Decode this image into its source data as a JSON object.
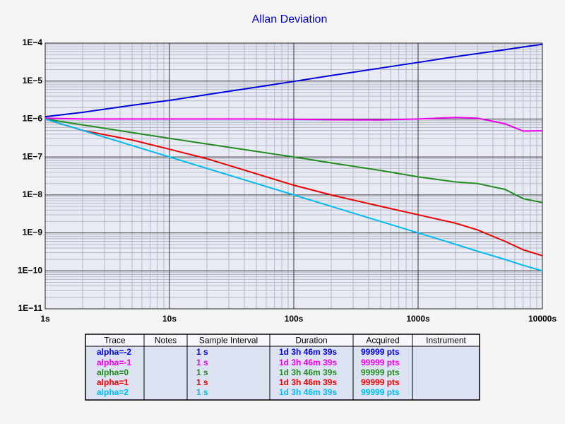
{
  "chart_data": {
    "type": "line",
    "title": "Allan Deviation",
    "log_x": true,
    "log_y": true,
    "grid": true,
    "minor_grid": true,
    "xlim": [
      1,
      10000
    ],
    "ylim": [
      1e-11,
      0.0001
    ],
    "xticks": [
      {
        "value": 1,
        "label": "1s"
      },
      {
        "value": 10,
        "label": "10s"
      },
      {
        "value": 100,
        "label": "100s"
      },
      {
        "value": 1000,
        "label": "1000s"
      },
      {
        "value": 10000,
        "label": "10000s"
      }
    ],
    "yticks": [
      {
        "value": 1e-11,
        "label": "1E−11"
      },
      {
        "value": 1e-10,
        "label": "1E−10"
      },
      {
        "value": 1e-09,
        "label": "1E−9"
      },
      {
        "value": 1e-08,
        "label": "1E−8"
      },
      {
        "value": 1e-07,
        "label": "1E−7"
      },
      {
        "value": 1e-06,
        "label": "1E−6"
      },
      {
        "value": 1e-05,
        "label": "1E−5"
      },
      {
        "value": 0.0001,
        "label": "1E−4"
      }
    ],
    "x": [
      1,
      2,
      5,
      10,
      20,
      50,
      100,
      200,
      500,
      1000,
      2000,
      3000,
      5000,
      7000,
      10000
    ],
    "series": [
      {
        "name": "alpha=-2",
        "color": "#0000dd",
        "values": [
          1.15e-06,
          1.5e-06,
          2.3e-06,
          3.1e-06,
          4.4e-06,
          6.9e-06,
          9.8e-06,
          1.4e-05,
          2.2e-05,
          3.1e-05,
          4.4e-05,
          5.3e-05,
          6.7e-05,
          7.9e-05,
          9.3e-05
        ]
      },
      {
        "name": "alpha=-1",
        "color": "#ee00ee",
        "values": [
          1.05e-06,
          1e-06,
          1e-06,
          1e-06,
          1e-06,
          1e-06,
          9.8e-07,
          9.6e-07,
          9.5e-07,
          1e-06,
          1.1e-06,
          1.05e-06,
          7.5e-07,
          4.8e-07,
          4.9e-07
        ]
      },
      {
        "name": "alpha=0",
        "color": "#228b22",
        "values": [
          1e-06,
          7e-07,
          4.4e-07,
          3.1e-07,
          2.2e-07,
          1.4e-07,
          1e-07,
          7e-08,
          4.4e-08,
          3e-08,
          2.2e-08,
          2e-08,
          1.4e-08,
          8e-09,
          6.3e-09
        ]
      },
      {
        "name": "alpha=1",
        "color": "#ee0000",
        "values": [
          1e-06,
          5e-07,
          2.8e-07,
          1.6e-07,
          9e-08,
          3.6e-08,
          1.8e-08,
          1e-08,
          5e-09,
          3e-09,
          1.8e-09,
          1.2e-09,
          6e-10,
          3.6e-10,
          2.5e-10
        ]
      },
      {
        "name": "alpha=2",
        "color": "#00bbee",
        "values": [
          1e-06,
          5e-07,
          2e-07,
          1e-07,
          5e-08,
          2e-08,
          1e-08,
          5e-09,
          2e-09,
          1e-09,
          5e-10,
          3.3e-10,
          2e-10,
          1.4e-10,
          1e-10
        ]
      }
    ],
    "table": {
      "columns": [
        "Trace",
        "Notes",
        "Sample Interval",
        "Duration",
        "Acquired",
        "Instrument"
      ],
      "rows": [
        [
          "alpha=-2",
          null,
          "1 s",
          "1d 3h 46m 39s",
          "99999 pts",
          null
        ],
        [
          "alpha=-1",
          null,
          "1 s",
          "1d 3h 46m 39s",
          "99999 pts",
          null
        ],
        [
          "alpha=0",
          null,
          "1 s",
          "1d 3h 46m 39s",
          "99999 pts",
          null
        ],
        [
          "alpha=1",
          null,
          "1 s",
          "1d 3h 46m 39s",
          "99999 pts",
          null
        ],
        [
          "alpha=2",
          null,
          "1 s",
          "1d 3h 46m 39s",
          "99999 pts",
          null
        ]
      ]
    }
  }
}
